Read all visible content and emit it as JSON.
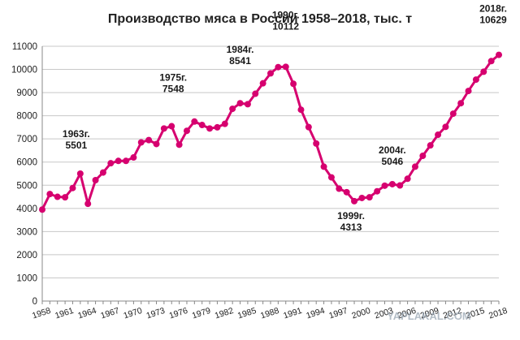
{
  "chart_data": {
    "type": "line",
    "title": "Производство мяса в России 1958–2018, тыс. т",
    "xlabel": "",
    "ylabel": "",
    "ylim": [
      0,
      11000
    ],
    "yticks": [
      0,
      1000,
      2000,
      3000,
      4000,
      5000,
      6000,
      7000,
      8000,
      9000,
      10000,
      11000
    ],
    "ytick_labels": [
      "0",
      "1000",
      "2000",
      "3000",
      "4000",
      "5000",
      "6000",
      "7000",
      "8000",
      "9000",
      "10000",
      "11000"
    ],
    "xticks": [
      1958,
      1961,
      1964,
      1967,
      1970,
      1973,
      1976,
      1979,
      1982,
      1985,
      1988,
      1991,
      1994,
      1997,
      2000,
      2003,
      2006,
      2009,
      2012,
      2015,
      2018
    ],
    "grid": true,
    "legend": "none",
    "series_color": "#d6006f",
    "x": [
      1958,
      1959,
      1960,
      1961,
      1962,
      1963,
      1964,
      1965,
      1966,
      1967,
      1968,
      1969,
      1970,
      1971,
      1972,
      1973,
      1974,
      1975,
      1976,
      1977,
      1978,
      1979,
      1980,
      1981,
      1982,
      1983,
      1984,
      1985,
      1986,
      1987,
      1988,
      1989,
      1990,
      1991,
      1992,
      1993,
      1994,
      1995,
      1996,
      1997,
      1998,
      1999,
      2000,
      2001,
      2002,
      2003,
      2004,
      2005,
      2006,
      2007,
      2008,
      2009,
      2010,
      2011,
      2012,
      2013,
      2014,
      2015,
      2016,
      2017,
      2018
    ],
    "y": [
      3950,
      4620,
      4500,
      4480,
      4880,
      5501,
      4200,
      5220,
      5550,
      5950,
      6050,
      6050,
      6200,
      6850,
      6950,
      6780,
      7450,
      7548,
      6750,
      7350,
      7750,
      7600,
      7450,
      7500,
      7650,
      8300,
      8541,
      8500,
      8950,
      9400,
      9830,
      10100,
      10112,
      9380,
      8260,
      7510,
      6800,
      5800,
      5340,
      4850,
      4700,
      4313,
      4450,
      4480,
      4740,
      4980,
      5046,
      4990,
      5280,
      5800,
      6270,
      6720,
      7180,
      7520,
      8090,
      8540,
      9070,
      9560,
      9900,
      10360,
      10629
    ],
    "annotations": [
      {
        "text": [
          "1963г.",
          "5501"
        ]
      },
      {
        "text": [
          "1975г.",
          "7548"
        ]
      },
      {
        "text": [
          "1984г.",
          "8541"
        ]
      },
      {
        "text": [
          "1990г.",
          "10112"
        ]
      },
      {
        "text": [
          "1999г.",
          "4313"
        ]
      },
      {
        "text": [
          "2004г.",
          "5046"
        ]
      },
      {
        "text": [
          "2018г.",
          "10629"
        ]
      }
    ]
  },
  "watermark": "YAPLAKAL.COM"
}
